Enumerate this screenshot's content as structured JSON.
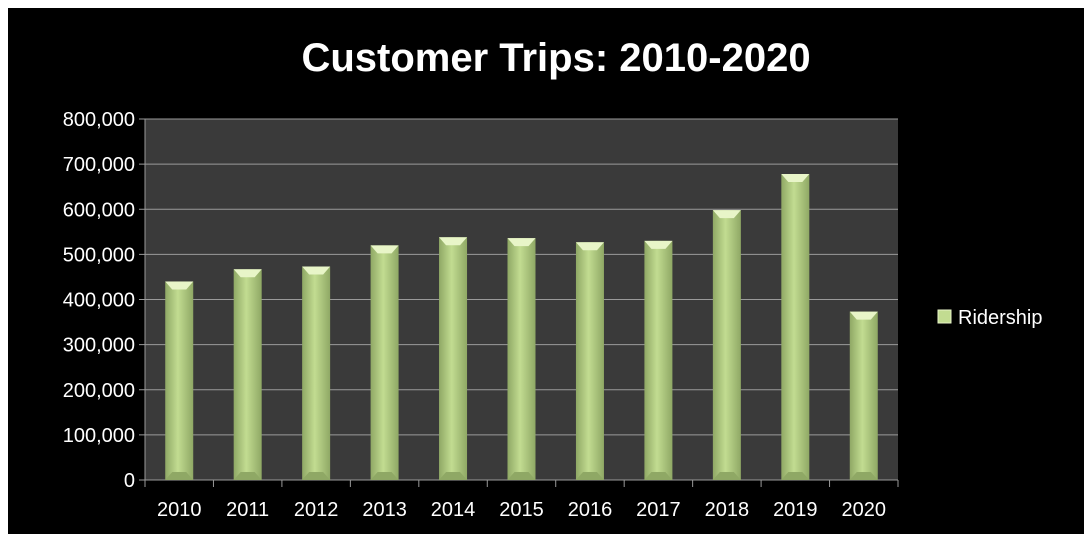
{
  "chart_data": {
    "type": "bar",
    "title": "Customer Trips:  2010-2020",
    "categories": [
      "2010",
      "2011",
      "2012",
      "2013",
      "2014",
      "2015",
      "2016",
      "2017",
      "2018",
      "2019",
      "2020"
    ],
    "series": [
      {
        "name": "Ridership",
        "values": [
          440000,
          467000,
          473000,
          520000,
          538000,
          536000,
          527000,
          530000,
          598000,
          678000,
          373000
        ]
      }
    ],
    "ylim": [
      0,
      800000
    ],
    "ytick_labels": [
      "0",
      "100,000",
      "200,000",
      "300,000",
      "400,000",
      "500,000",
      "600,000",
      "700,000",
      "800,000"
    ],
    "grid": true,
    "legend_position": "right",
    "colors": {
      "background": "#000000",
      "plot_area": "#3a3a3a",
      "bar": "#c2dc91",
      "bar_highlight": "#e8f5c8",
      "bar_shadow": "#8fa865",
      "gridline": "#9a9a9a",
      "text": "#ffffff"
    }
  }
}
